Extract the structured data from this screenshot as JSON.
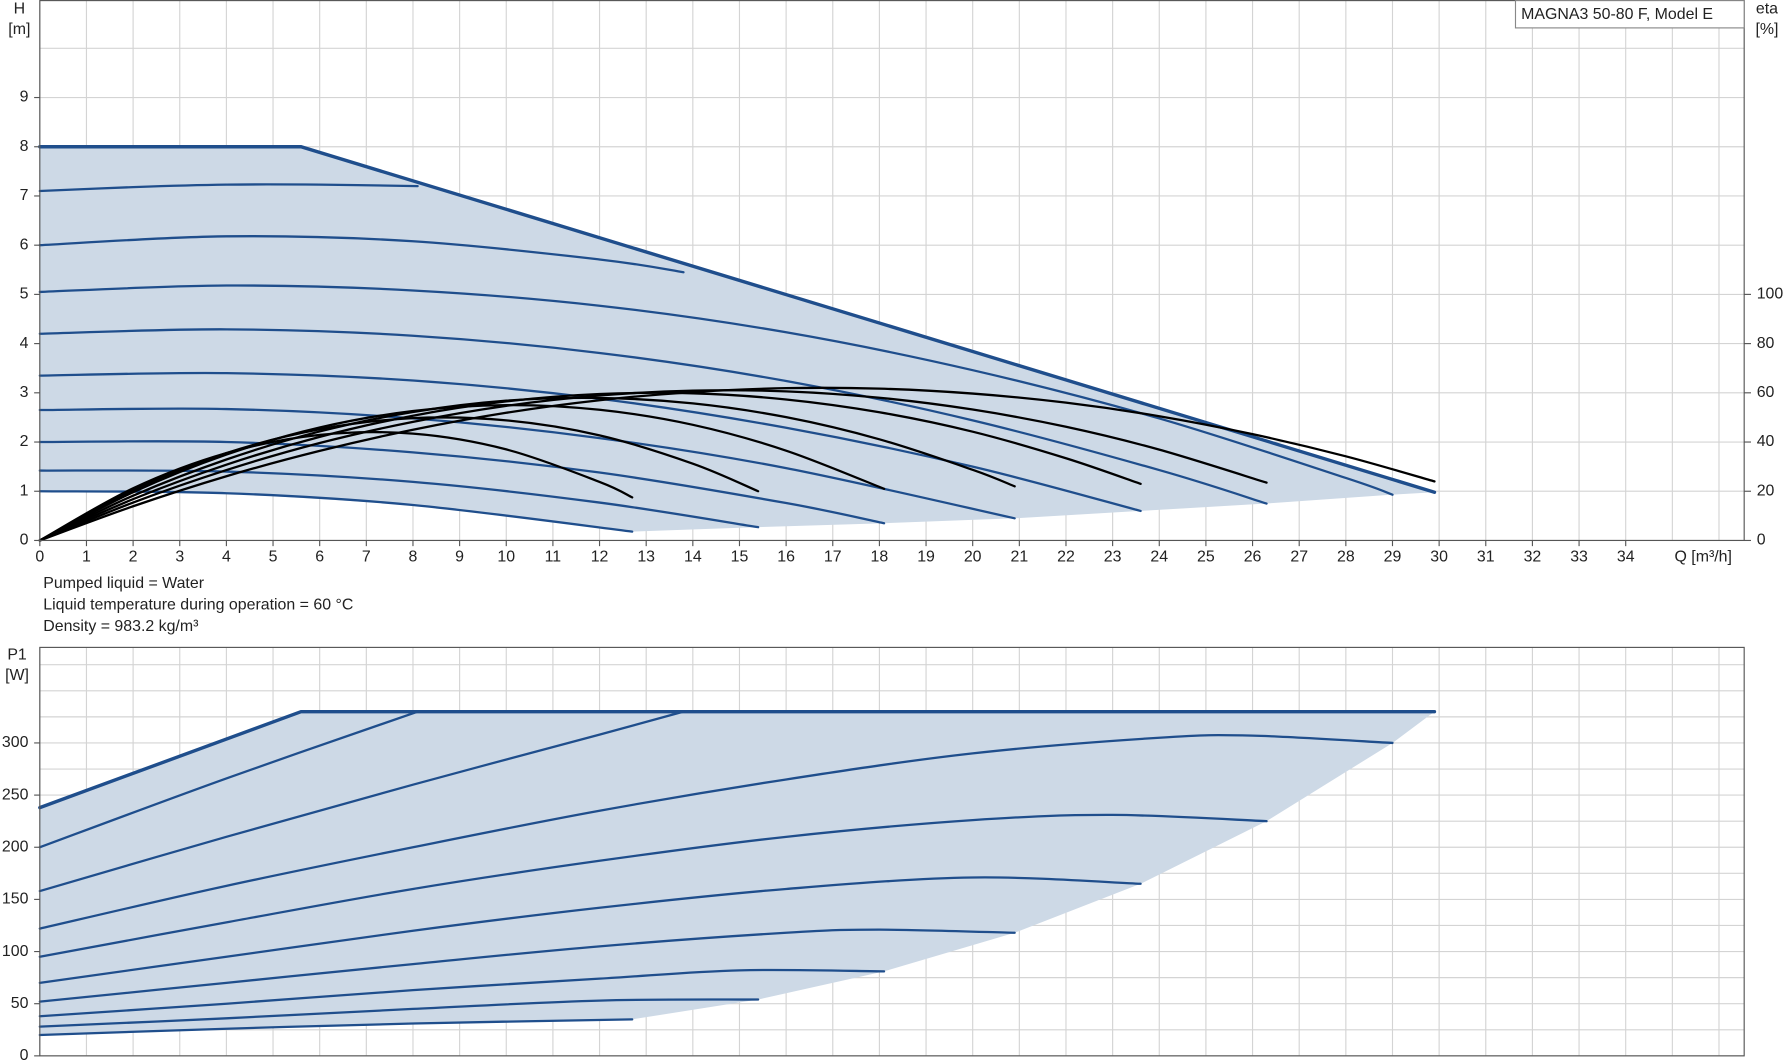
{
  "chart_data": [
    {
      "type": "line",
      "title": "MAGNA3 50-80 F, Model E",
      "x_label": "Q [m³/h]",
      "y_label": [
        "H",
        "[m]"
      ],
      "y2_label": [
        "eta",
        "[%]"
      ],
      "notes": [
        "Pumped liquid = Water",
        "Liquid temperature during operation = 60 °C",
        "Density = 983.2 kg/m³"
      ],
      "xlim": [
        0,
        36.54
      ],
      "ylim": [
        0,
        10.97
      ],
      "y2lim": [
        0,
        219.4
      ],
      "xticks": [
        0,
        1,
        2,
        3,
        4,
        5,
        6,
        7,
        8,
        9,
        10,
        11,
        12,
        13,
        14,
        15,
        16,
        17,
        18,
        19,
        20,
        21,
        22,
        23,
        24,
        25,
        26,
        27,
        28,
        29,
        30,
        31,
        32,
        33,
        34
      ],
      "xgrid": [
        0,
        1,
        2,
        3,
        4,
        5,
        6,
        7,
        8,
        9,
        10,
        11,
        12,
        13,
        14,
        15,
        16,
        17,
        18,
        19,
        20,
        21,
        22,
        23,
        24,
        25,
        26,
        27,
        28,
        29,
        30,
        31,
        32,
        33,
        34,
        35,
        36
      ],
      "yticks": [
        0,
        1,
        2,
        3,
        4,
        5,
        6,
        7,
        8,
        9
      ],
      "ygrid": [
        0,
        1,
        2,
        3,
        4,
        5,
        6,
        7,
        8,
        9,
        10
      ],
      "y2ticks": [
        0,
        20,
        40,
        60,
        80,
        100
      ],
      "grid": true,
      "area_color": "#cdd9e6",
      "series": [
        {
          "color": "#1f4e8c",
          "width": 3,
          "smooth": false,
          "x": [
            0,
            5.6,
            29.9
          ],
          "values": [
            8,
            8,
            0.98
          ]
        },
        {
          "color": "#1f4e8c",
          "x": [
            0,
            2,
            4,
            6,
            8.1
          ],
          "values": [
            7.1,
            7.18,
            7.23,
            7.23,
            7.2
          ]
        },
        {
          "color": "#1f4e8c",
          "x": [
            0,
            4,
            8,
            12,
            13.8
          ],
          "values": [
            6.0,
            6.18,
            6.08,
            5.71,
            5.45
          ]
        },
        {
          "color": "#1f4e8c",
          "x": [
            0,
            4,
            8,
            12,
            16,
            20,
            24,
            28,
            29
          ],
          "values": [
            5.05,
            5.18,
            5.08,
            4.77,
            4.23,
            3.46,
            2.48,
            1.27,
            0.93
          ]
        },
        {
          "color": "#1f4e8c",
          "x": [
            0,
            4,
            8,
            12,
            16,
            20,
            24,
            26.3
          ],
          "values": [
            4.2,
            4.29,
            4.16,
            3.81,
            3.24,
            2.44,
            1.43,
            0.75
          ]
        },
        {
          "color": "#1f4e8c",
          "x": [
            0,
            4,
            8,
            12,
            16,
            20,
            23.6
          ],
          "values": [
            3.35,
            3.4,
            3.25,
            2.88,
            2.29,
            1.5,
            0.6
          ]
        },
        {
          "color": "#1f4e8c",
          "x": [
            0,
            4,
            8,
            12,
            16,
            20.9
          ],
          "values": [
            2.65,
            2.67,
            2.48,
            2.08,
            1.47,
            0.45
          ]
        },
        {
          "color": "#1f4e8c",
          "x": [
            0,
            4,
            8,
            12,
            16,
            18.1
          ],
          "values": [
            2.0,
            2.0,
            1.79,
            1.38,
            0.76,
            0.35
          ]
        },
        {
          "color": "#1f4e8c",
          "x": [
            0,
            4,
            8,
            12,
            15.4
          ],
          "values": [
            1.42,
            1.4,
            1.19,
            0.77,
            0.27
          ]
        },
        {
          "color": "#1f4e8c",
          "x": [
            0,
            4,
            8,
            12.7
          ],
          "values": [
            1.0,
            0.96,
            0.72,
            0.18
          ]
        },
        {
          "color": "#000000",
          "axis": "y2",
          "x": [
            0,
            2,
            4,
            6,
            8,
            10,
            12,
            12.7
          ],
          "values": [
            0,
            21.2,
            35.5,
            42.9,
            43.4,
            37.0,
            23.8,
            17.5
          ]
        },
        {
          "color": "#000000",
          "axis": "y2",
          "x": [
            0,
            2,
            4,
            6,
            8,
            10,
            12,
            14,
            15.4
          ],
          "values": [
            0,
            20.4,
            35.5,
            45.2,
            49.7,
            48.8,
            42.7,
            31.2,
            20
          ]
        },
        {
          "color": "#000000",
          "axis": "y2",
          "x": [
            0,
            2,
            4,
            6,
            8,
            10,
            12,
            14,
            16,
            18.1
          ],
          "values": [
            0,
            19.6,
            34.9,
            45.9,
            52.6,
            55.0,
            53.1,
            47.0,
            36.5,
            21
          ]
        },
        {
          "color": "#000000",
          "axis": "y2",
          "x": [
            0,
            2,
            4,
            6,
            8,
            10,
            12,
            14,
            16,
            18,
            20,
            20.9
          ],
          "values": [
            0,
            18.2,
            32.9,
            44.3,
            52.2,
            56.8,
            57.9,
            55.7,
            50.1,
            41.1,
            28.7,
            22
          ]
        },
        {
          "color": "#000000",
          "axis": "y2",
          "x": [
            0,
            2,
            4,
            6,
            8,
            10,
            12,
            14,
            16,
            18,
            20,
            22,
            23.6
          ],
          "values": [
            0,
            16.8,
            30.8,
            42.1,
            50.7,
            56.5,
            59.5,
            59.8,
            57.3,
            52.1,
            44.2,
            33.4,
            23
          ]
        },
        {
          "color": "#000000",
          "axis": "y2",
          "x": [
            0,
            2,
            4,
            6,
            8,
            10,
            12,
            14,
            16,
            18,
            20,
            22,
            24,
            26.3
          ],
          "values": [
            0,
            15.4,
            28.6,
            39.6,
            48.2,
            54.7,
            58.9,
            60.9,
            60.6,
            58.0,
            53.2,
            46.2,
            36.9,
            23.5
          ]
        },
        {
          "color": "#000000",
          "axis": "y2",
          "x": [
            0,
            2,
            4,
            6,
            8,
            10,
            12,
            14,
            16,
            18,
            20,
            22,
            24,
            26,
            28,
            29.9
          ],
          "values": [
            0,
            13.9,
            26.1,
            36.4,
            45.0,
            51.9,
            57.0,
            60.3,
            61.9,
            61.7,
            59.7,
            56.0,
            50.5,
            43.2,
            34.2,
            24
          ]
        }
      ]
    },
    {
      "type": "line",
      "y_label": [
        "P1",
        "[W]"
      ],
      "xlim": [
        0,
        36.54
      ],
      "ylim": [
        0,
        391.6
      ],
      "xgrid": [
        0,
        1,
        2,
        3,
        4,
        5,
        6,
        7,
        8,
        9,
        10,
        11,
        12,
        13,
        14,
        15,
        16,
        17,
        18,
        19,
        20,
        21,
        22,
        23,
        24,
        25,
        26,
        27,
        28,
        29,
        30,
        31,
        32,
        33,
        34,
        35,
        36
      ],
      "yticks": [
        0,
        50,
        100,
        150,
        200,
        250,
        300
      ],
      "ygrid": [
        0,
        25,
        50,
        75,
        100,
        125,
        150,
        175,
        200,
        225,
        250,
        275,
        300,
        325,
        350,
        375
      ],
      "grid": true,
      "area_color": "#cdd9e6",
      "series": [
        {
          "color": "#1f4e8c",
          "width": 3,
          "smooth": false,
          "x": [
            0,
            5.6,
            29.9
          ],
          "values": [
            238,
            330,
            330
          ]
        },
        {
          "color": "#1f4e8c",
          "x": [
            0,
            4,
            8.1
          ],
          "values": [
            200,
            266,
            330
          ]
        },
        {
          "color": "#1f4e8c",
          "x": [
            0,
            4,
            8,
            12,
            13.8
          ],
          "values": [
            158,
            210,
            260,
            308,
            330
          ]
        },
        {
          "color": "#1f4e8c",
          "x": [
            0,
            4,
            8,
            12,
            16,
            20,
            24,
            26,
            29
          ],
          "values": [
            122,
            163,
            200,
            235,
            265,
            290,
            305,
            307,
            300
          ]
        },
        {
          "color": "#1f4e8c",
          "x": [
            0,
            4,
            8,
            12,
            16,
            20,
            23,
            26.3
          ],
          "values": [
            95,
            128,
            160,
            187,
            210,
            226,
            231,
            225
          ]
        },
        {
          "color": "#1f4e8c",
          "x": [
            0,
            4,
            8,
            12,
            16,
            20,
            23.6
          ],
          "values": [
            70,
            95,
            120,
            142,
            160,
            171,
            165
          ]
        },
        {
          "color": "#1f4e8c",
          "x": [
            0,
            4,
            8,
            12,
            16,
            18,
            20.9
          ],
          "values": [
            52,
            70,
            88,
            105,
            118,
            121,
            118
          ]
        },
        {
          "color": "#1f4e8c",
          "x": [
            0,
            4,
            8,
            12,
            15,
            18.1
          ],
          "values": [
            38,
            50,
            63,
            74,
            82,
            81
          ]
        },
        {
          "color": "#1f4e8c",
          "x": [
            0,
            4,
            8,
            12,
            15.4
          ],
          "values": [
            28,
            36,
            45,
            53,
            54
          ]
        },
        {
          "color": "#1f4e8c",
          "x": [
            0,
            4,
            8,
            12.7
          ],
          "values": [
            20,
            26,
            31,
            35
          ]
        }
      ]
    }
  ]
}
